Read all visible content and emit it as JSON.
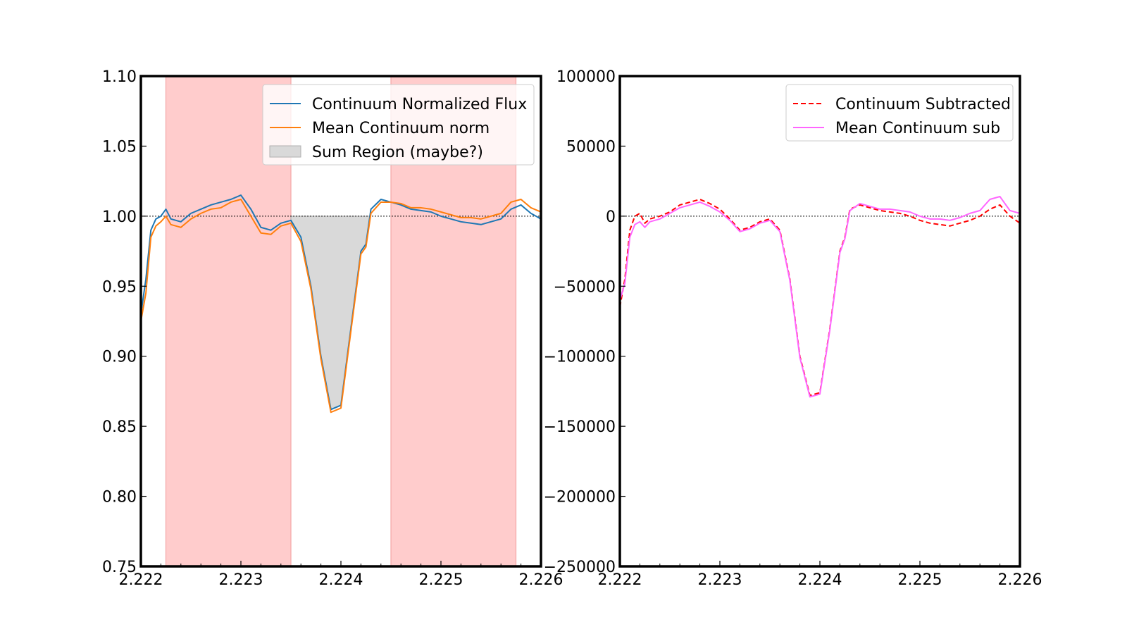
{
  "chart_data": [
    {
      "type": "line",
      "title": "",
      "xlabel": "",
      "ylabel": "",
      "xlim": [
        2.222,
        2.226
      ],
      "ylim": [
        0.75,
        1.1
      ],
      "x_ticks": [
        "2.222",
        "2.223",
        "2.224",
        "2.225",
        "2.226"
      ],
      "y_ticks": [
        "0.75",
        "0.80",
        "0.85",
        "0.90",
        "0.95",
        "1.00",
        "1.05",
        "1.10"
      ],
      "reference_line": 1.0,
      "shaded_bands": [
        [
          2.22225,
          2.2235
        ],
        [
          2.2245,
          2.22575
        ]
      ],
      "band_color": "#ffcccc",
      "fill_region": [
        2.2235,
        2.2243
      ],
      "fill_color": "#d9d9d9",
      "legend_position": "top-right",
      "legend": [
        "Continuum Normalized Flux",
        "Mean Continuum norm",
        "Sum Region (maybe?)"
      ],
      "series": [
        {
          "name": "Continuum Normalized Flux",
          "color": "#1f77b4",
          "x": [
            2.222,
            2.22205,
            2.2221,
            2.22215,
            2.2222,
            2.22225,
            2.2223,
            2.2224,
            2.2225,
            2.2226,
            2.2227,
            2.2228,
            2.2229,
            2.223,
            2.2231,
            2.2232,
            2.2233,
            2.2234,
            2.2235,
            2.2236,
            2.2237,
            2.2238,
            2.2239,
            2.224,
            2.2241,
            2.2242,
            2.22425,
            2.2243,
            2.2244,
            2.2245,
            2.2246,
            2.2247,
            2.2248,
            2.2249,
            2.225,
            2.2251,
            2.2252,
            2.2253,
            2.2254,
            2.2255,
            2.2256,
            2.2257,
            2.2258,
            2.2259,
            2.226
          ],
          "values": [
            0.93,
            0.955,
            0.99,
            0.998,
            1.0,
            1.005,
            0.998,
            0.996,
            1.002,
            1.005,
            1.008,
            1.01,
            1.012,
            1.015,
            1.005,
            0.992,
            0.99,
            0.995,
            0.997,
            0.985,
            0.95,
            0.9,
            0.862,
            0.865,
            0.92,
            0.975,
            0.98,
            1.005,
            1.012,
            1.01,
            1.008,
            1.005,
            1.004,
            1.003,
            1.0,
            0.998,
            0.996,
            0.995,
            0.994,
            0.996,
            0.998,
            1.005,
            1.008,
            1.002,
            0.998
          ]
        },
        {
          "name": "Mean Continuum norm",
          "color": "#ff7f0e",
          "x": [
            2.222,
            2.22205,
            2.2221,
            2.22215,
            2.2222,
            2.22225,
            2.2223,
            2.2224,
            2.2225,
            2.2226,
            2.2227,
            2.2228,
            2.2229,
            2.223,
            2.2231,
            2.2232,
            2.2233,
            2.2234,
            2.2235,
            2.2236,
            2.2237,
            2.2238,
            2.2239,
            2.224,
            2.2241,
            2.2242,
            2.22425,
            2.2243,
            2.2244,
            2.2245,
            2.2246,
            2.2247,
            2.2248,
            2.2249,
            2.225,
            2.2251,
            2.2252,
            2.2253,
            2.2254,
            2.2255,
            2.2256,
            2.2257,
            2.2258,
            2.2259,
            2.226
          ],
          "values": [
            0.925,
            0.945,
            0.985,
            0.993,
            0.996,
            1.0,
            0.994,
            0.992,
            0.998,
            1.002,
            1.005,
            1.006,
            1.01,
            1.012,
            1.0,
            0.988,
            0.987,
            0.993,
            0.995,
            0.982,
            0.948,
            0.898,
            0.86,
            0.863,
            0.918,
            0.973,
            0.978,
            1.002,
            1.01,
            1.01,
            1.009,
            1.006,
            1.006,
            1.005,
            1.003,
            1.001,
            0.999,
            0.999,
            0.998,
            1.0,
            1.002,
            1.01,
            1.012,
            1.006,
            1.003
          ]
        }
      ]
    },
    {
      "type": "line",
      "title": "",
      "xlabel": "",
      "ylabel": "",
      "xlim": [
        2.222,
        2.226
      ],
      "ylim": [
        -250000,
        100000
      ],
      "x_ticks": [
        "2.222",
        "2.223",
        "2.224",
        "2.225",
        "2.226"
      ],
      "y_ticks": [
        "−250000",
        "−200000",
        "−150000",
        "−100000",
        "−50000",
        "0",
        "50000",
        "100000"
      ],
      "reference_line": 0,
      "legend_position": "top-right",
      "legend": [
        "Continuum Subtracted",
        "Mean Continuum sub"
      ],
      "series": [
        {
          "name": "Continuum Subtracted",
          "color": "#ff0000",
          "dashed": true,
          "x": [
            2.222,
            2.22205,
            2.2221,
            2.22215,
            2.2222,
            2.22225,
            2.2223,
            2.2224,
            2.2225,
            2.2226,
            2.2227,
            2.2228,
            2.2229,
            2.223,
            2.2231,
            2.2232,
            2.2233,
            2.2234,
            2.2235,
            2.2236,
            2.2237,
            2.2238,
            2.2239,
            2.224,
            2.2241,
            2.2242,
            2.22425,
            2.2243,
            2.2244,
            2.2245,
            2.2246,
            2.2247,
            2.2248,
            2.2249,
            2.225,
            2.2251,
            2.2252,
            2.2253,
            2.2254,
            2.2255,
            2.2256,
            2.2257,
            2.2258,
            2.2259,
            2.226
          ],
          "values": [
            -65000,
            -45000,
            -10000,
            0,
            2000,
            -5000,
            -2000,
            0,
            3000,
            8000,
            10000,
            12000,
            9000,
            5000,
            -2000,
            -10000,
            -8000,
            -4000,
            -2000,
            -10000,
            -45000,
            -100000,
            -128000,
            -126000,
            -80000,
            -25000,
            -15000,
            5000,
            8000,
            6000,
            4000,
            3000,
            2000,
            0,
            -3000,
            -5000,
            -6000,
            -7000,
            -5000,
            -3000,
            0,
            5000,
            8000,
            0,
            -5000
          ]
        },
        {
          "name": "Mean Continuum sub",
          "color": "#ff66ff",
          "dashed": false,
          "x": [
            2.222,
            2.22205,
            2.2221,
            2.22215,
            2.2222,
            2.22225,
            2.2223,
            2.2224,
            2.2225,
            2.2226,
            2.2227,
            2.2228,
            2.2229,
            2.223,
            2.2231,
            2.2232,
            2.2233,
            2.2234,
            2.2235,
            2.2236,
            2.2237,
            2.2238,
            2.2239,
            2.224,
            2.2241,
            2.2242,
            2.22425,
            2.2243,
            2.2244,
            2.2245,
            2.2246,
            2.2247,
            2.2248,
            2.2249,
            2.225,
            2.2251,
            2.2252,
            2.2253,
            2.2254,
            2.2255,
            2.2256,
            2.2257,
            2.2258,
            2.2259,
            2.226
          ],
          "values": [
            -60000,
            -48000,
            -15000,
            -6000,
            -4000,
            -8000,
            -4000,
            -2000,
            2000,
            6000,
            8000,
            10000,
            7000,
            3000,
            -3000,
            -11000,
            -9000,
            -5000,
            -3000,
            -11000,
            -46000,
            -101000,
            -129000,
            -127000,
            -81000,
            -26000,
            -16000,
            4000,
            9000,
            7000,
            5000,
            5000,
            4000,
            3000,
            0,
            -2000,
            -2000,
            -3000,
            -1000,
            2000,
            4000,
            12000,
            14000,
            4000,
            2000
          ]
        }
      ]
    }
  ]
}
